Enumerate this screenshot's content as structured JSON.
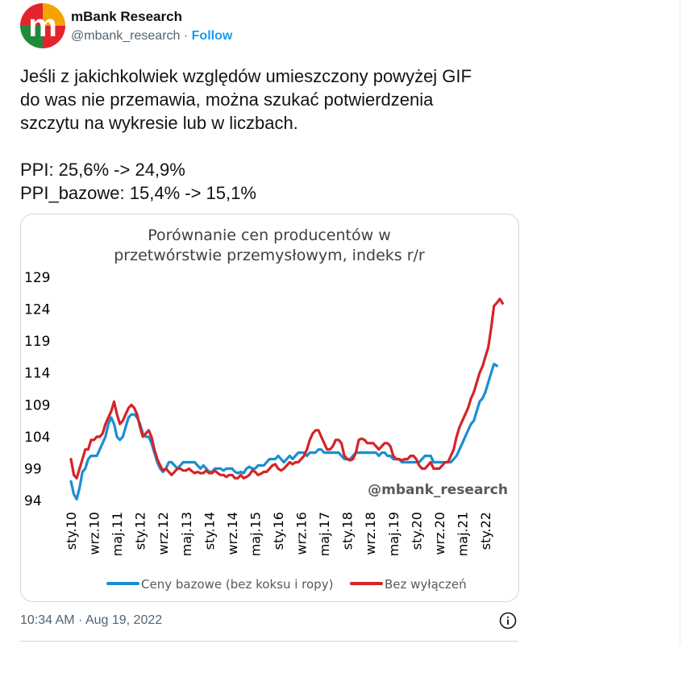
{
  "tweet": {
    "author_name": "mBank Research",
    "handle": "@mbank_research",
    "separator": " · ",
    "follow_label": "Follow",
    "avatar_letter": "m",
    "text": "Jeśli z jakichkolwiek względów umieszczony powyżej GIF\ndo was nie przemawia, można szukać potwierdzenia\nszczytu na wykresie lub w liczbach.\n\nPPI: 25,6% -> 24,9%\nPPI_bazowe: 15,4% -> 15,1%",
    "timestamp": "10:34 AM · Aug 19, 2022",
    "colors": {
      "link": "#1d9bf0",
      "muted": "#536471"
    }
  },
  "chart_data": {
    "type": "line",
    "title_line1": "Porównanie cen producentów w",
    "title_line2": "przetwórstwie przemysłowym, indeks r/r",
    "watermark": "@mbank_research",
    "y_ticks": [
      "129",
      "124",
      "119",
      "114",
      "109",
      "104",
      "99",
      "94"
    ],
    "ylim": [
      94,
      129
    ],
    "x_tick_labels": [
      "sty.10",
      "wrz.10",
      "maj.11",
      "sty.12",
      "wrz.12",
      "maj.13",
      "sty.14",
      "wrz.14",
      "maj.15",
      "sty.16",
      "wrz.16",
      "maj.17",
      "sty.18",
      "wrz.18",
      "maj.19",
      "sty.20",
      "wrz.20",
      "maj.21",
      "sty.22"
    ],
    "x_tick_months": [
      0,
      8,
      16,
      24,
      32,
      40,
      48,
      56,
      64,
      72,
      80,
      88,
      96,
      104,
      112,
      120,
      128,
      136,
      144
    ],
    "x_range_months": [
      0,
      151
    ],
    "legend_position": "bottom",
    "series": [
      {
        "name": "Ceny bazowe (bez koksu i ropy)",
        "color": "#1a8fd0",
        "points": [
          [
            0,
            97
          ],
          [
            1,
            95
          ],
          [
            2,
            94.2
          ],
          [
            3,
            96
          ],
          [
            4,
            98.5
          ],
          [
            5,
            99
          ],
          [
            6,
            100.5
          ],
          [
            7,
            101
          ],
          [
            8,
            101
          ],
          [
            9,
            101
          ],
          [
            10,
            102
          ],
          [
            11,
            103
          ],
          [
            12,
            104
          ],
          [
            13,
            106
          ],
          [
            14,
            107
          ],
          [
            15,
            106
          ],
          [
            16,
            104
          ],
          [
            17,
            103.5
          ],
          [
            18,
            104
          ],
          [
            19,
            105.5
          ],
          [
            20,
            107
          ],
          [
            21,
            107.5
          ],
          [
            22,
            107.5
          ],
          [
            23,
            107
          ],
          [
            24,
            106
          ],
          [
            25,
            104.5
          ],
          [
            26,
            104
          ],
          [
            27,
            104
          ],
          [
            28,
            103
          ],
          [
            29,
            101.5
          ],
          [
            30,
            100
          ],
          [
            31,
            99
          ],
          [
            32,
            98.5
          ],
          [
            33,
            99
          ],
          [
            34,
            100
          ],
          [
            35,
            100
          ],
          [
            36,
            99.5
          ],
          [
            37,
            99
          ],
          [
            38,
            99.5
          ],
          [
            39,
            100
          ],
          [
            40,
            100
          ],
          [
            41,
            100
          ],
          [
            42,
            100
          ],
          [
            43,
            100
          ],
          [
            44,
            99.5
          ],
          [
            45,
            99
          ],
          [
            46,
            99.5
          ],
          [
            47,
            99
          ],
          [
            48,
            98.5
          ],
          [
            49,
            98.5
          ],
          [
            50,
            99
          ],
          [
            51,
            99
          ],
          [
            52,
            99
          ],
          [
            53,
            98.7
          ],
          [
            54,
            99
          ],
          [
            55,
            99
          ],
          [
            56,
            99
          ],
          [
            57,
            98.5
          ],
          [
            58,
            98.3
          ],
          [
            59,
            98.5
          ],
          [
            60,
            98.3
          ],
          [
            61,
            99
          ],
          [
            62,
            99.3
          ],
          [
            63,
            99
          ],
          [
            64,
            99
          ],
          [
            65,
            99.5
          ],
          [
            66,
            99.5
          ],
          [
            67,
            99.5
          ],
          [
            68,
            100
          ],
          [
            69,
            100.5
          ],
          [
            70,
            100.5
          ],
          [
            71,
            100.5
          ],
          [
            72,
            101
          ],
          [
            73,
            100.5
          ],
          [
            74,
            100
          ],
          [
            75,
            100.5
          ],
          [
            76,
            101
          ],
          [
            77,
            100.5
          ],
          [
            78,
            101
          ],
          [
            79,
            101.5
          ],
          [
            80,
            101.5
          ],
          [
            81,
            101.5
          ],
          [
            82,
            101
          ],
          [
            83,
            101.5
          ],
          [
            84,
            101.5
          ],
          [
            85,
            101.5
          ],
          [
            86,
            102
          ],
          [
            87,
            102
          ],
          [
            88,
            101.5
          ],
          [
            89,
            101.5
          ],
          [
            90,
            101.5
          ],
          [
            91,
            101.5
          ],
          [
            92,
            101.5
          ],
          [
            93,
            101.5
          ],
          [
            94,
            101
          ],
          [
            95,
            100.5
          ],
          [
            96,
            100.5
          ],
          [
            97,
            100.5
          ],
          [
            98,
            101
          ],
          [
            99,
            101.5
          ],
          [
            100,
            101.5
          ],
          [
            101,
            101.5
          ],
          [
            102,
            101.5
          ],
          [
            103,
            101.5
          ],
          [
            104,
            101.5
          ],
          [
            105,
            101.5
          ],
          [
            106,
            101.5
          ],
          [
            107,
            101
          ],
          [
            108,
            101.5
          ],
          [
            109,
            101.5
          ],
          [
            110,
            101
          ],
          [
            111,
            101
          ],
          [
            112,
            100.5
          ],
          [
            113,
            100.5
          ],
          [
            114,
            100.5
          ],
          [
            115,
            100
          ],
          [
            116,
            100
          ],
          [
            117,
            100
          ],
          [
            118,
            100
          ],
          [
            119,
            100
          ],
          [
            120,
            100
          ],
          [
            121,
            100
          ],
          [
            122,
            100.5
          ],
          [
            123,
            101
          ],
          [
            124,
            101
          ],
          [
            125,
            101
          ],
          [
            126,
            100
          ],
          [
            127,
            100
          ],
          [
            128,
            100
          ],
          [
            129,
            100
          ],
          [
            130,
            100
          ],
          [
            131,
            100
          ],
          [
            132,
            100
          ],
          [
            133,
            100.5
          ],
          [
            134,
            101
          ],
          [
            135,
            102
          ],
          [
            136,
            103
          ],
          [
            137,
            104
          ],
          [
            138,
            105
          ],
          [
            139,
            106
          ],
          [
            140,
            106.5
          ],
          [
            141,
            108
          ],
          [
            142,
            109.5
          ],
          [
            143,
            110
          ],
          [
            144,
            111
          ],
          [
            145,
            112.5
          ],
          [
            146,
            114
          ],
          [
            147,
            115.4
          ],
          [
            148,
            115.1
          ]
        ]
      },
      {
        "name": "Bez wyłączeń",
        "color": "#d42427",
        "points": [
          [
            0,
            100.5
          ],
          [
            1,
            98
          ],
          [
            2,
            97.5
          ],
          [
            3,
            99
          ],
          [
            4,
            100.5
          ],
          [
            5,
            102
          ],
          [
            6,
            102
          ],
          [
            7,
            103.5
          ],
          [
            8,
            103.5
          ],
          [
            9,
            104
          ],
          [
            10,
            104
          ],
          [
            11,
            104.5
          ],
          [
            12,
            106
          ],
          [
            13,
            107
          ],
          [
            14,
            108
          ],
          [
            15,
            109.5
          ],
          [
            16,
            107.5
          ],
          [
            17,
            106
          ],
          [
            18,
            106.5
          ],
          [
            19,
            107.5
          ],
          [
            20,
            108.5
          ],
          [
            21,
            109
          ],
          [
            22,
            108.5
          ],
          [
            23,
            107.5
          ],
          [
            24,
            105.5
          ],
          [
            25,
            104
          ],
          [
            26,
            104.5
          ],
          [
            27,
            105
          ],
          [
            28,
            104
          ],
          [
            29,
            102
          ],
          [
            30,
            100.5
          ],
          [
            31,
            99.5
          ],
          [
            32,
            98.7
          ],
          [
            33,
            99
          ],
          [
            34,
            98.5
          ],
          [
            35,
            98
          ],
          [
            36,
            98.5
          ],
          [
            37,
            99
          ],
          [
            38,
            99
          ],
          [
            39,
            98.7
          ],
          [
            40,
            98.7
          ],
          [
            41,
            99
          ],
          [
            42,
            98.6
          ],
          [
            43,
            98.3
          ],
          [
            44,
            98.5
          ],
          [
            45,
            98.3
          ],
          [
            46,
            98.3
          ],
          [
            47,
            98.7
          ],
          [
            48,
            98.3
          ],
          [
            49,
            98.3
          ],
          [
            50,
            98.7
          ],
          [
            51,
            98.3
          ],
          [
            52,
            98
          ],
          [
            53,
            98
          ],
          [
            54,
            97.7
          ],
          [
            55,
            98
          ],
          [
            56,
            98
          ],
          [
            57,
            97.5
          ],
          [
            58,
            97.5
          ],
          [
            59,
            98
          ],
          [
            60,
            97.5
          ],
          [
            61,
            97.7
          ],
          [
            62,
            98
          ],
          [
            63,
            98.7
          ],
          [
            64,
            98.5
          ],
          [
            65,
            98
          ],
          [
            66,
            98.2
          ],
          [
            67,
            98.5
          ],
          [
            68,
            98.5
          ],
          [
            69,
            99
          ],
          [
            70,
            99.5
          ],
          [
            71,
            99.7
          ],
          [
            72,
            99
          ],
          [
            73,
            98.7
          ],
          [
            74,
            99
          ],
          [
            75,
            99.5
          ],
          [
            76,
            100
          ],
          [
            77,
            99.7
          ],
          [
            78,
            100
          ],
          [
            79,
            100
          ],
          [
            80,
            100.5
          ],
          [
            81,
            101
          ],
          [
            82,
            102
          ],
          [
            83,
            103.5
          ],
          [
            84,
            104.5
          ],
          [
            85,
            105
          ],
          [
            86,
            105
          ],
          [
            87,
            104
          ],
          [
            88,
            103
          ],
          [
            89,
            102
          ],
          [
            90,
            102
          ],
          [
            91,
            102.5
          ],
          [
            92,
            103.5
          ],
          [
            93,
            103.5
          ],
          [
            94,
            103
          ],
          [
            95,
            101
          ],
          [
            96,
            100.5
          ],
          [
            97,
            100.3
          ],
          [
            98,
            100.5
          ],
          [
            99,
            101.5
          ],
          [
            100,
            103.5
          ],
          [
            101,
            103.7
          ],
          [
            102,
            103.5
          ],
          [
            103,
            103
          ],
          [
            104,
            103
          ],
          [
            105,
            103
          ],
          [
            106,
            102.5
          ],
          [
            107,
            102
          ],
          [
            108,
            102.5
          ],
          [
            109,
            103
          ],
          [
            110,
            103
          ],
          [
            111,
            102.5
          ],
          [
            112,
            101
          ],
          [
            113,
            100.5
          ],
          [
            114,
            100.5
          ],
          [
            115,
            100.3
          ],
          [
            116,
            100.5
          ],
          [
            117,
            100.5
          ],
          [
            118,
            101
          ],
          [
            119,
            101
          ],
          [
            120,
            100.5
          ],
          [
            121,
            99.5
          ],
          [
            122,
            99
          ],
          [
            123,
            99
          ],
          [
            124,
            99.5
          ],
          [
            125,
            100
          ],
          [
            126,
            99
          ],
          [
            127,
            99
          ],
          [
            128,
            99
          ],
          [
            129,
            99.5
          ],
          [
            130,
            100
          ],
          [
            131,
            100
          ],
          [
            132,
            101
          ],
          [
            133,
            102
          ],
          [
            134,
            104
          ],
          [
            135,
            105.5
          ],
          [
            136,
            106.5
          ],
          [
            137,
            107.5
          ],
          [
            138,
            108.5
          ],
          [
            139,
            110
          ],
          [
            140,
            111
          ],
          [
            141,
            112.5
          ],
          [
            142,
            114
          ],
          [
            143,
            115
          ],
          [
            144,
            116.5
          ],
          [
            145,
            118
          ],
          [
            146,
            121
          ],
          [
            147,
            124.5
          ],
          [
            148,
            125
          ],
          [
            149,
            125.6
          ],
          [
            150,
            124.9
          ]
        ]
      }
    ]
  }
}
